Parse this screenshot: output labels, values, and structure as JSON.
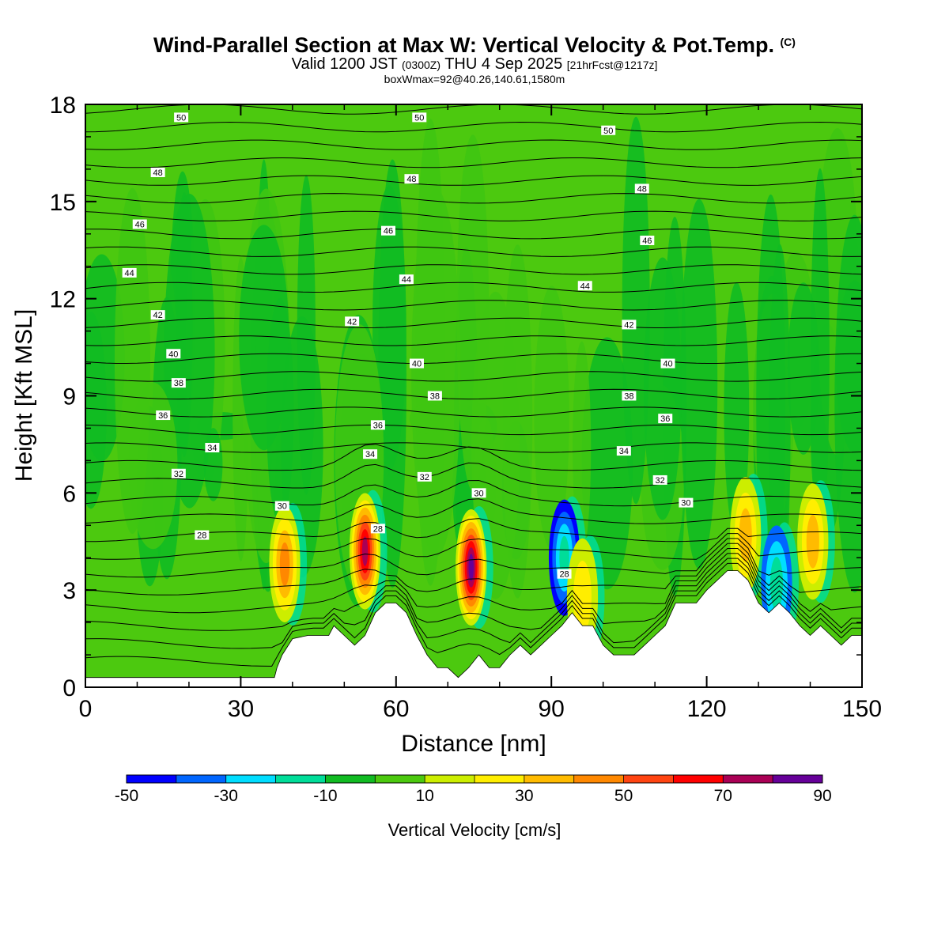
{
  "title": {
    "main": "Wind-Parallel Section at Max W: Vertical Velocity & Pot.Temp.",
    "copyright": "(C)",
    "valid_prefix": "Valid 1200 JST",
    "valid_zulu": "(0300Z)",
    "valid_day": "THU 4 Sep 2025",
    "forecast": "[21hrFcst@1217z]",
    "box": "boxWmax=92@40.26,140.61,1580m"
  },
  "colors": {
    "background_field": "#4cc90f",
    "terrain": "#ffffff",
    "contour": "#000000",
    "velocity_palette": [
      "#0000ff",
      "#0066ff",
      "#00ddff",
      "#00dd99",
      "#11bb22",
      "#4cc90f",
      "#ccee00",
      "#ffee00",
      "#ffbb00",
      "#ff8800",
      "#ff4411",
      "#ff0000",
      "#aa0055",
      "#660099"
    ]
  },
  "chart_data": {
    "type": "heatmap",
    "title": "Wind-Parallel Section at Max W: Vertical Velocity & Pot.Temp.",
    "xlabel": "Distance [nm]",
    "ylabel": "Height [Kft MSL]",
    "xlim": [
      0,
      150
    ],
    "ylim": [
      0,
      18
    ],
    "xticks": [
      0,
      30,
      60,
      90,
      120,
      150
    ],
    "yticks": [
      0,
      3,
      6,
      9,
      12,
      15,
      18
    ],
    "colorbar": {
      "label": "Vertical Velocity [cm/s]",
      "bounds": [
        -50,
        -40,
        -30,
        -20,
        -10,
        0,
        10,
        20,
        30,
        40,
        50,
        60,
        70,
        80,
        90
      ],
      "tick_labels": [
        "-50",
        "-30",
        "-10",
        "10",
        "30",
        "50",
        "70",
        "90"
      ]
    },
    "terrain_profile": {
      "x_nm": [
        0,
        36.5,
        37,
        38,
        40,
        43,
        45,
        47,
        48,
        50,
        52,
        54,
        56,
        58,
        60,
        62,
        64,
        66,
        68,
        70,
        72,
        74,
        76,
        78,
        80,
        82,
        84,
        86,
        88,
        90,
        92,
        94,
        96,
        98,
        100,
        102,
        104,
        106,
        108,
        110,
        112,
        114,
        116,
        118,
        120,
        122,
        124,
        126,
        128,
        130,
        132,
        134,
        136,
        138,
        140,
        142,
        144,
        146,
        148,
        150
      ],
      "height_kft": [
        0.3,
        0.3,
        0.6,
        1.0,
        1.5,
        1.6,
        1.6,
        1.6,
        1.9,
        1.6,
        1.3,
        1.6,
        2.3,
        2.6,
        2.6,
        2.3,
        1.6,
        1.0,
        0.6,
        0.6,
        0.3,
        0.6,
        1.0,
        0.6,
        0.6,
        1.0,
        1.3,
        1.0,
        1.3,
        1.6,
        1.9,
        2.3,
        1.9,
        1.9,
        1.3,
        1.0,
        1.0,
        1.0,
        1.3,
        1.6,
        1.9,
        2.6,
        2.6,
        2.6,
        3.0,
        3.3,
        3.6,
        3.6,
        3.3,
        2.6,
        2.3,
        2.6,
        2.3,
        1.9,
        1.6,
        1.9,
        1.6,
        1.3,
        1.6,
        1.6
      ]
    },
    "vertical_velocity_cells": [
      {
        "x_nm": 38.5,
        "z_kft": 3.8,
        "w_cms": 42
      },
      {
        "x_nm": 54.0,
        "z_kft": 4.2,
        "w_cms": 72
      },
      {
        "x_nm": 74.5,
        "z_kft": 3.7,
        "w_cms": 92
      },
      {
        "x_nm": 92.5,
        "z_kft": 4.0,
        "w_cms": -50
      },
      {
        "x_nm": 96.0,
        "z_kft": 2.8,
        "w_cms": 28
      },
      {
        "x_nm": 127.5,
        "z_kft": 4.7,
        "w_cms": 40
      },
      {
        "x_nm": 140.5,
        "z_kft": 4.5,
        "w_cms": 32
      },
      {
        "x_nm": 133.5,
        "z_kft": 3.2,
        "w_cms": -40
      }
    ],
    "theta_contour_labels": [
      {
        "value": "50",
        "x_nm": 18.5,
        "z_kft": 17.6
      },
      {
        "value": "50",
        "x_nm": 64.5,
        "z_kft": 17.6
      },
      {
        "value": "50",
        "x_nm": 101,
        "z_kft": 17.2
      },
      {
        "value": "48",
        "x_nm": 14,
        "z_kft": 15.9
      },
      {
        "value": "48",
        "x_nm": 63,
        "z_kft": 15.7
      },
      {
        "value": "48",
        "x_nm": 107.5,
        "z_kft": 15.4
      },
      {
        "value": "46",
        "x_nm": 10.5,
        "z_kft": 14.3
      },
      {
        "value": "46",
        "x_nm": 58.5,
        "z_kft": 14.1
      },
      {
        "value": "46",
        "x_nm": 108.5,
        "z_kft": 13.8
      },
      {
        "value": "44",
        "x_nm": 8.5,
        "z_kft": 12.8
      },
      {
        "value": "44",
        "x_nm": 62,
        "z_kft": 12.6
      },
      {
        "value": "44",
        "x_nm": 96.5,
        "z_kft": 12.4
      },
      {
        "value": "42",
        "x_nm": 14,
        "z_kft": 11.5
      },
      {
        "value": "42",
        "x_nm": 51.5,
        "z_kft": 11.3
      },
      {
        "value": "42",
        "x_nm": 105,
        "z_kft": 11.2
      },
      {
        "value": "40",
        "x_nm": 17,
        "z_kft": 10.3
      },
      {
        "value": "40",
        "x_nm": 64,
        "z_kft": 10.0
      },
      {
        "value": "40",
        "x_nm": 112.5,
        "z_kft": 10.0
      },
      {
        "value": "38",
        "x_nm": 18,
        "z_kft": 9.4
      },
      {
        "value": "38",
        "x_nm": 67.5,
        "z_kft": 9.0
      },
      {
        "value": "38",
        "x_nm": 105,
        "z_kft": 9.0
      },
      {
        "value": "36",
        "x_nm": 15,
        "z_kft": 8.4
      },
      {
        "value": "36",
        "x_nm": 56.5,
        "z_kft": 8.1
      },
      {
        "value": "36",
        "x_nm": 112,
        "z_kft": 8.3
      },
      {
        "value": "34",
        "x_nm": 24.5,
        "z_kft": 7.4
      },
      {
        "value": "34",
        "x_nm": 55,
        "z_kft": 7.2
      },
      {
        "value": "34",
        "x_nm": 104,
        "z_kft": 7.3
      },
      {
        "value": "32",
        "x_nm": 18,
        "z_kft": 6.6
      },
      {
        "value": "32",
        "x_nm": 65.5,
        "z_kft": 6.5
      },
      {
        "value": "32",
        "x_nm": 111,
        "z_kft": 6.4
      },
      {
        "value": "30",
        "x_nm": 38,
        "z_kft": 5.6
      },
      {
        "value": "30",
        "x_nm": 76,
        "z_kft": 6.0
      },
      {
        "value": "30",
        "x_nm": 116,
        "z_kft": 5.7
      },
      {
        "value": "28",
        "x_nm": 22.5,
        "z_kft": 4.7
      },
      {
        "value": "28",
        "x_nm": 56.5,
        "z_kft": 4.9
      },
      {
        "value": "28",
        "x_nm": 92.5,
        "z_kft": 3.5
      }
    ]
  }
}
